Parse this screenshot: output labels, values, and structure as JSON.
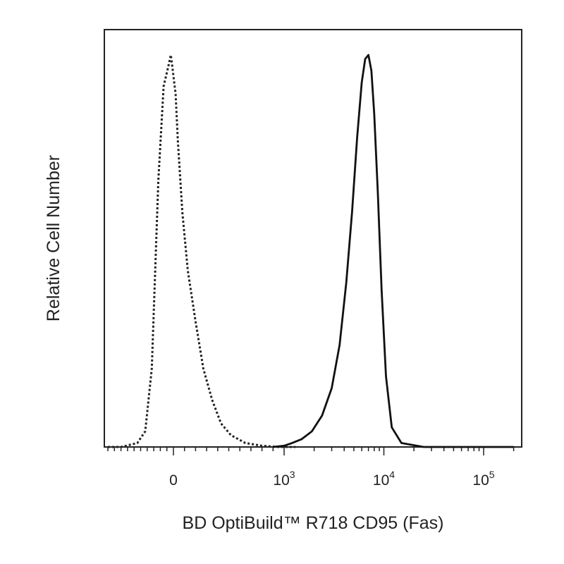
{
  "chart_data": {
    "type": "line",
    "xlabel": "BD OptiBuild™ R718 CD95 (Fas)",
    "ylabel": "Relative Cell Number",
    "x_scale": "biexponential",
    "xlim": [
      -1000,
      200000
    ],
    "ylim": [
      0,
      100
    ],
    "grid": false,
    "legend": "none",
    "x_ticks": [
      {
        "value": 0,
        "base": "0",
        "exp": ""
      },
      {
        "value": 1000,
        "base": "10",
        "exp": "3"
      },
      {
        "value": 10000,
        "base": "10",
        "exp": "4"
      },
      {
        "value": 100000,
        "base": "10",
        "exp": "5"
      }
    ],
    "series": [
      {
        "style": "dotted",
        "color": "#222222",
        "x": [
          -1000,
          -800,
          -550,
          -430,
          -330,
          -230,
          -150,
          -80,
          -40,
          -10,
          20,
          40,
          80,
          130,
          200,
          270,
          350,
          430,
          520,
          650,
          800,
          950,
          1100,
          1300
        ],
        "y": [
          0,
          0,
          1,
          4,
          20,
          68,
          92,
          97,
          100,
          96,
          90,
          78,
          60,
          45,
          32,
          20,
          12,
          6,
          3,
          1,
          0.3,
          0,
          0,
          0
        ]
      },
      {
        "style": "solid",
        "color": "#111111",
        "x": [
          900,
          1000,
          1200,
          1500,
          1900,
          2400,
          3000,
          3600,
          4200,
          4800,
          5400,
          6000,
          6500,
          7000,
          7500,
          8000,
          8700,
          9500,
          10500,
          12000,
          15000,
          25000,
          60000,
          200000
        ],
        "y": [
          0,
          0.3,
          1,
          2,
          4,
          8,
          15,
          26,
          42,
          60,
          79,
          93,
          99,
          100,
          96,
          85,
          65,
          40,
          18,
          5,
          1,
          0,
          0,
          0
        ]
      }
    ]
  }
}
